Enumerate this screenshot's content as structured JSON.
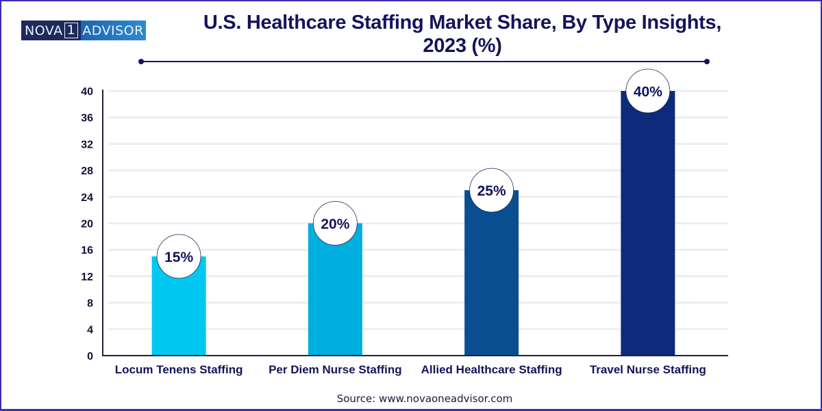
{
  "brand": {
    "logo_left": "NOVA",
    "logo_mid": "1",
    "logo_right": "ADVISOR"
  },
  "source": "Source: www.novaoneadvisor.com",
  "colors": {
    "frame": "#3a2fae",
    "title": "#14135a",
    "grid": "#eeeeee"
  },
  "chart_data": {
    "type": "bar",
    "title": "U.S. Healthcare Staffing Market Share, By Type Insights, 2023 (%)",
    "title_lines": [
      "U.S. Healthcare Staffing Market Share, By Type Insights,",
      "2023 (%)"
    ],
    "xlabel": "",
    "ylabel": "",
    "categories": [
      "Locum Tenens Staffing",
      "Per Diem Nurse Staffing",
      "Allied Healthcare Staffing",
      "Travel Nurse Staffing"
    ],
    "values": [
      15,
      20,
      25,
      40
    ],
    "data_labels": [
      "15%",
      "20%",
      "25%",
      "40%"
    ],
    "bar_colors": [
      "#00c8f0",
      "#00aee0",
      "#0a4f8f",
      "#0e2a7a"
    ],
    "ylim": [
      0,
      40
    ],
    "yticks": [
      0,
      4,
      8,
      12,
      16,
      20,
      24,
      28,
      32,
      36,
      40
    ],
    "grid": true,
    "legend": "none"
  }
}
